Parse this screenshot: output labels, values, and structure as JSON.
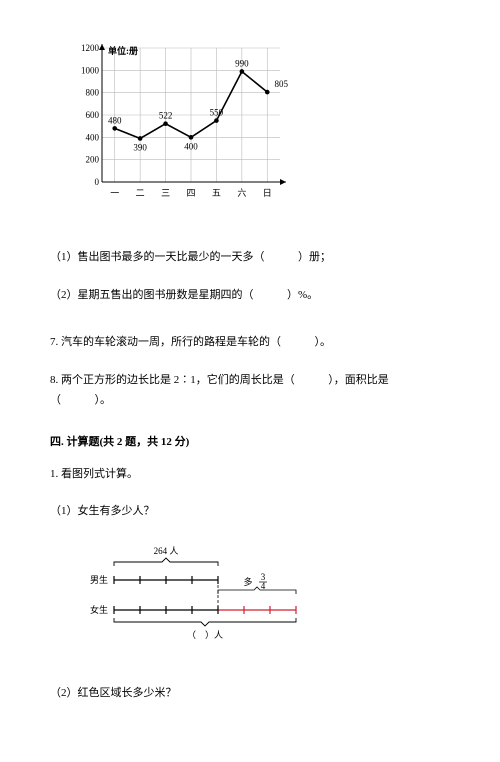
{
  "chart": {
    "unit_label": "单位:册",
    "y_ticks": [
      0,
      200,
      400,
      600,
      800,
      1000,
      1200
    ],
    "x_labels": [
      "一",
      "二",
      "三",
      "四",
      "五",
      "六",
      "日"
    ],
    "values": [
      480,
      390,
      522,
      400,
      550,
      990,
      805
    ],
    "line_color": "#000000",
    "grid_color": "#bbbbbb",
    "bg_color": "#ffffff"
  },
  "q1": {
    "text_a": "（1）售出图书最多的一天比最少的一天多（",
    "text_b": "）册；"
  },
  "q2": {
    "text_a": "（2）星期五售出的图书册数是星期四的（",
    "text_b": "）%。"
  },
  "q7": {
    "text_a": "7. 汽车的车轮滚动一周，所行的路程是车轮的（",
    "text_b": "）。"
  },
  "q8": {
    "text_a": "8. 两个正方形的边长比是 2∶1，它们的周长比是（",
    "text_b": "），面积比是",
    "text_c": "（",
    "text_d": "）。"
  },
  "section4": {
    "title": "四. 计算题(共 2 题，共 12 分)",
    "item1": "1. 看图列式计算。",
    "sub1": "（1）女生有多少人？",
    "sub2": "（2）红色区域长多少米？"
  },
  "bar_diagram": {
    "top_value": "264 人",
    "label_boy": "男生",
    "label_girl": "女生",
    "fraction_label": "多",
    "fraction_num": "3",
    "fraction_den": "4",
    "bottom_label_a": "（",
    "bottom_label_b": "）人",
    "line_color": "#000000",
    "girl_color": "#d02030"
  }
}
